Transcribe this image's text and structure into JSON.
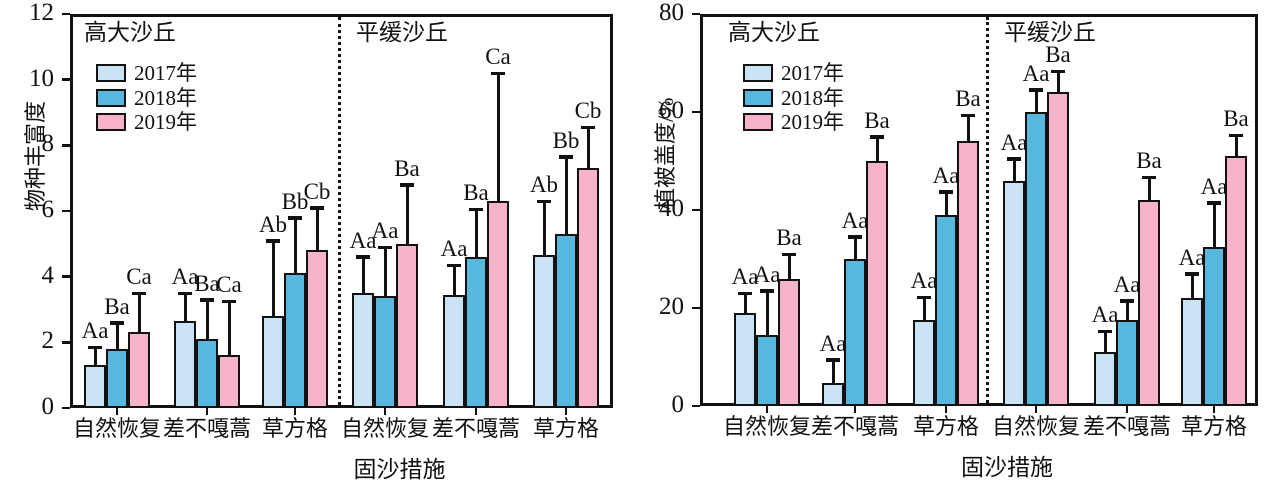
{
  "figure_title": "",
  "legend": [
    "2017年",
    "2018年",
    "2019年"
  ],
  "colors": {
    "year2017": "#c9e3f4",
    "year2018": "#58b7dd",
    "year2019": "#f7b3c8",
    "axis": "#111111"
  },
  "chart_data": [
    {
      "type": "bar",
      "title": "",
      "ylabel": "物种丰富度",
      "xlabel": "固沙措施",
      "ylim": [
        0,
        12
      ],
      "yticks": [
        0,
        2,
        4,
        6,
        8,
        10,
        12
      ],
      "grid": false,
      "legend_position": "top-left",
      "sections": [
        "高大沙丘",
        "平缓沙丘"
      ],
      "categories": [
        "自然恢复",
        "差不嘎蒿",
        "草方格",
        "自然恢复",
        "差不嘎蒿",
        "草方格"
      ],
      "series": [
        {
          "name": "2017年",
          "color": "#c9e3f4",
          "values": [
            1.3,
            2.65,
            2.8,
            3.5,
            3.45,
            4.65
          ],
          "errors": [
            0.55,
            0.85,
            2.3,
            1.1,
            0.9,
            1.65
          ],
          "sig_labels": [
            "Aa",
            "Aa",
            "Ab",
            "Aa",
            "Aa",
            "Ab"
          ]
        },
        {
          "name": "2018年",
          "color": "#58b7dd",
          "values": [
            1.8,
            2.1,
            4.1,
            3.4,
            4.6,
            5.3
          ],
          "errors": [
            0.8,
            1.2,
            1.7,
            1.5,
            1.45,
            2.35
          ],
          "sig_labels": [
            "Ba",
            "Ba",
            "Bb",
            "Aa",
            "Ba",
            "Bb"
          ]
        },
        {
          "name": "2019年",
          "color": "#f7b3c8",
          "values": [
            2.3,
            1.6,
            4.8,
            5.0,
            6.3,
            7.3
          ],
          "errors": [
            1.2,
            1.65,
            1.3,
            1.8,
            3.9,
            1.25
          ],
          "sig_labels": [
            "Ca",
            "Ca",
            "Cb",
            "Ba",
            "Ca",
            "Cb"
          ]
        }
      ]
    },
    {
      "type": "bar",
      "title": "",
      "ylabel": "植被盖度/%",
      "xlabel": "固沙措施",
      "ylim": [
        0,
        80
      ],
      "yticks": [
        0,
        20,
        40,
        60,
        80
      ],
      "grid": false,
      "legend_position": "top-left",
      "sections": [
        "高大沙丘",
        "平缓沙丘"
      ],
      "categories": [
        "自然恢复",
        "差不嘎蒿",
        "草方格",
        "自然恢复",
        "差不嘎蒿",
        "草方格"
      ],
      "series": [
        {
          "name": "2017年",
          "color": "#c9e3f4",
          "values": [
            19,
            4.7,
            17.5,
            46,
            11,
            22
          ],
          "errors": [
            4,
            4.7,
            4.7,
            4.5,
            4.3,
            5
          ],
          "sig_labels": [
            "Aa",
            "Aa",
            "Aa",
            "Aa",
            "Aa",
            "Aa"
          ]
        },
        {
          "name": "2018年",
          "color": "#58b7dd",
          "values": [
            14.5,
            30,
            39,
            60,
            17.5,
            32.5
          ],
          "errors": [
            9,
            4.5,
            4.7,
            4.5,
            4,
            9
          ],
          "sig_labels": [
            "Aa",
            "Aa",
            "Aa",
            "Aa",
            "Aa",
            "Aa"
          ]
        },
        {
          "name": "2019年",
          "color": "#f7b3c8",
          "values": [
            26,
            50,
            54,
            64,
            42,
            51
          ],
          "errors": [
            5,
            5,
            5.3,
            4.3,
            4.7,
            4.3
          ],
          "sig_labels": [
            "Ba",
            "Ba",
            "Ba",
            "Ba",
            "Ba",
            "Ba"
          ]
        }
      ]
    }
  ]
}
